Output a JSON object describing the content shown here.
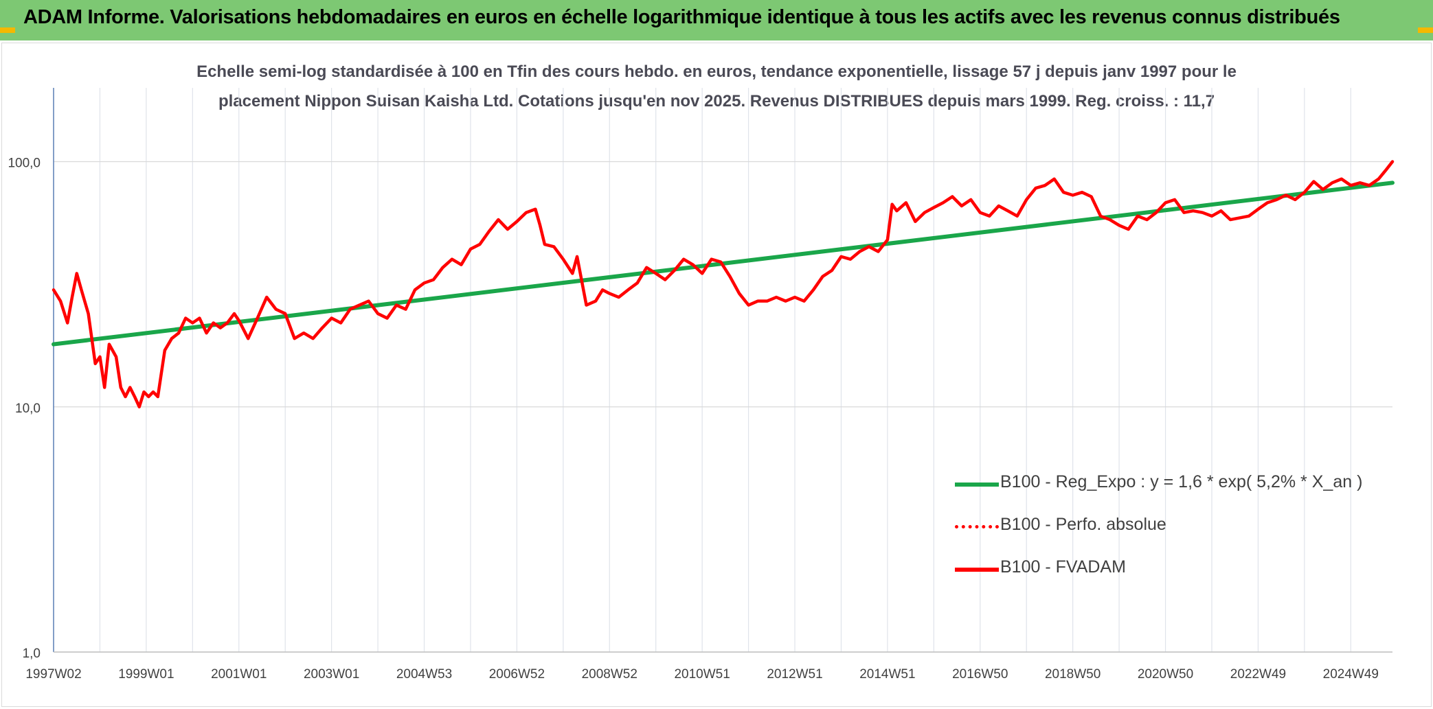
{
  "banner": {
    "title": "ADAM Informe. Valorisations hebdomadaires en euros en échelle logarithmique identique à tous les actifs avec les revenus connus distribués",
    "color": "#7dc873"
  },
  "chart_data": {
    "type": "line",
    "title_line1": "Echelle semi-log standardisée à 100 en Tfin des cours hebdo. en euros, tendance exponentielle, lissage 57 j depuis janv 1997 pour le",
    "title_line2": "placement Nippon Suisan Kaisha Ltd. Cotations jusqu'en nov 2025. Revenus DISTRIBUES depuis mars 1999. Reg. croiss. : 11,7",
    "y_scale": "log",
    "ylim": [
      1,
      200
    ],
    "y_ticks": [
      "1,0",
      "10,0",
      "100,0"
    ],
    "y_tick_values": [
      1,
      10,
      100
    ],
    "xlim": [
      1997.0,
      2025.9
    ],
    "x_tick_labels": [
      "1997W02",
      "1999W01",
      "2001W01",
      "2003W01",
      "2004W53",
      "2006W52",
      "2008W52",
      "2010W51",
      "2012W51",
      "2014W51",
      "2016W50",
      "2018W50",
      "2020W50",
      "2022W49",
      "2024W49"
    ],
    "x_tick_values": [
      1997.0,
      1999.0,
      2001.0,
      2003.0,
      2005.0,
      2007.0,
      2009.0,
      2011.0,
      2013.0,
      2015.0,
      2017.0,
      2019.0,
      2021.0,
      2023.0,
      2025.0
    ],
    "grid": true,
    "legend_position": "bottom-right",
    "series": [
      {
        "name": "B100 - Reg_Expo : y = 1,6 * exp( 5,2% *  X_an )",
        "color": "#1aa64a",
        "style": "solid",
        "x": [
          1997.0,
          2025.9
        ],
        "y": [
          18.0,
          82.0
        ]
      },
      {
        "name": "B100 - Perfo. absolue",
        "color": "#ff0000",
        "style": "dotted",
        "x": [],
        "y": []
      },
      {
        "name": "B100 - FVADAM",
        "color": "#ff0000",
        "style": "solid",
        "x": [
          1997.0,
          1997.15,
          1997.3,
          1997.4,
          1997.5,
          1997.6,
          1997.75,
          1997.9,
          1998.0,
          1998.1,
          1998.2,
          1998.35,
          1998.45,
          1998.55,
          1998.65,
          1998.75,
          1998.85,
          1998.95,
          1999.05,
          1999.15,
          1999.25,
          1999.4,
          1999.55,
          1999.7,
          1999.85,
          2000.0,
          2000.15,
          2000.3,
          2000.45,
          2000.6,
          2000.75,
          2000.9,
          2001.0,
          2001.2,
          2001.4,
          2001.6,
          2001.8,
          2002.0,
          2002.2,
          2002.4,
          2002.6,
          2002.8,
          2003.0,
          2003.2,
          2003.4,
          2003.6,
          2003.8,
          2004.0,
          2004.2,
          2004.4,
          2004.6,
          2004.8,
          2005.0,
          2005.2,
          2005.4,
          2005.6,
          2005.8,
          2006.0,
          2006.2,
          2006.4,
          2006.6,
          2006.8,
          2007.0,
          2007.2,
          2007.4,
          2007.5,
          2007.6,
          2007.8,
          2008.0,
          2008.2,
          2008.3,
          2008.5,
          2008.7,
          2008.85,
          2009.0,
          2009.2,
          2009.4,
          2009.6,
          2009.8,
          2010.0,
          2010.2,
          2010.4,
          2010.6,
          2010.8,
          2011.0,
          2011.2,
          2011.4,
          2011.6,
          2011.8,
          2012.0,
          2012.2,
          2012.4,
          2012.6,
          2012.8,
          2013.0,
          2013.2,
          2013.4,
          2013.6,
          2013.8,
          2014.0,
          2014.2,
          2014.4,
          2014.6,
          2014.8,
          2015.0,
          2015.1,
          2015.2,
          2015.4,
          2015.6,
          2015.8,
          2016.0,
          2016.2,
          2016.4,
          2016.6,
          2016.8,
          2017.0,
          2017.2,
          2017.4,
          2017.6,
          2017.8,
          2018.0,
          2018.2,
          2018.4,
          2018.6,
          2018.8,
          2019.0,
          2019.2,
          2019.4,
          2019.6,
          2019.8,
          2020.0,
          2020.2,
          2020.4,
          2020.6,
          2020.8,
          2021.0,
          2021.2,
          2021.4,
          2021.6,
          2021.8,
          2022.0,
          2022.2,
          2022.4,
          2022.6,
          2022.8,
          2023.0,
          2023.2,
          2023.4,
          2023.6,
          2023.8,
          2024.0,
          2024.2,
          2024.4,
          2024.6,
          2024.8,
          2025.0,
          2025.2,
          2025.4,
          2025.6,
          2025.75,
          2025.9
        ],
        "y": [
          30,
          27,
          22,
          28,
          35,
          30,
          24,
          15,
          16,
          12,
          18,
          16,
          12,
          11,
          12,
          11,
          10,
          11.5,
          11,
          11.5,
          11,
          17,
          19,
          20,
          23,
          22,
          23,
          20,
          22,
          21,
          22,
          24,
          22.5,
          19,
          23,
          28,
          25,
          24,
          19,
          20,
          19,
          21,
          23,
          22,
          25,
          26,
          27,
          24,
          23,
          26,
          25,
          30,
          32,
          33,
          37,
          40,
          38,
          44,
          46,
          52,
          58,
          53,
          57,
          62,
          64,
          55,
          46,
          45,
          40,
          35,
          41,
          26,
          27,
          30,
          29,
          28,
          30,
          32,
          37,
          35,
          33,
          36,
          40,
          38,
          35,
          40,
          39,
          34,
          29,
          26,
          27,
          27,
          28,
          27,
          28,
          27,
          30,
          34,
          36,
          41,
          40,
          43,
          45,
          43,
          48,
          67,
          63,
          68,
          57,
          62,
          65,
          68,
          72,
          66,
          70,
          62,
          60,
          66,
          63,
          60,
          70,
          78,
          80,
          85,
          75,
          73,
          75,
          72,
          60,
          58,
          55,
          53,
          60,
          58,
          62,
          68,
          70,
          62,
          63,
          62,
          60,
          63,
          58,
          59,
          60,
          64,
          68,
          70,
          73,
          70,
          75,
          83,
          77,
          82,
          85,
          80,
          82,
          80,
          85,
          92,
          100
        ]
      }
    ]
  }
}
